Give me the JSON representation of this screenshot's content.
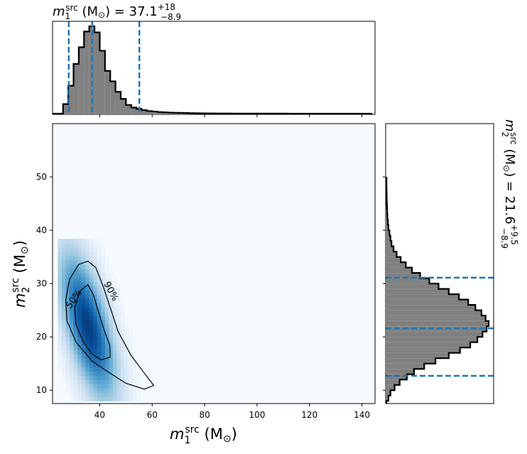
{
  "chart_data": [
    {
      "type": "histogram",
      "panel": "top-marginal",
      "variable": "m1_src",
      "title": {
        "main": "m",
        "sub": "1",
        "sup": "src",
        "rest": " (M",
        "sun": "⊙",
        "close": ") = 37.1",
        "plus": "+18",
        "minus": "−8.9"
      },
      "xlim": [
        22,
        145
      ],
      "median": 37.1,
      "lower": 28.2,
      "upper": 55.1,
      "bin_width": 2,
      "bin_start": 22,
      "values": [
        0,
        0,
        0.11,
        0.32,
        0.57,
        0.76,
        0.94,
        1.0,
        0.93,
        0.72,
        0.49,
        0.37,
        0.25,
        0.17,
        0.1,
        0.07,
        0.055,
        0.04,
        0.03,
        0.025,
        0.019,
        0.015,
        0.012,
        0.01,
        0.009,
        0.008,
        0.006,
        0.005,
        0.004,
        0.003,
        0.003,
        0.002,
        0.002,
        0.002,
        0.001,
        0.001,
        0.001,
        0.001,
        0.001,
        0.001,
        0.001,
        0.001,
        0.001,
        0.0008,
        0.0008,
        0.0006,
        0.0006,
        0.0005,
        0.0005,
        0.0004,
        0.0004,
        0.0003,
        0.0003,
        0.0002,
        0.0002,
        0.0001,
        0.0001,
        0.0001,
        0.0001,
        0.0001,
        0.0001
      ],
      "median_line_color": "#1f77b4",
      "fill_color": "#808080"
    },
    {
      "type": "heatmap",
      "panel": "joint",
      "x_variable": "m1_src",
      "y_variable": "m2_src",
      "xlim": [
        22,
        145
      ],
      "ylim": [
        7.5,
        60
      ],
      "xticks": [
        40,
        60,
        80,
        100,
        120,
        140
      ],
      "yticks": [
        10,
        20,
        30,
        40,
        50
      ],
      "xlabel": {
        "main": "m",
        "sub": "1",
        "sup": "src",
        "rest": " (M",
        "sun": "⊙",
        "close": ")"
      },
      "ylabel": {
        "main": "m",
        "sub": "2",
        "sup": "src",
        "rest": " (M",
        "sun": "⊙",
        "close": ")"
      },
      "density_peak": {
        "x": 35.5,
        "y": 22
      },
      "contours": [
        {
          "label": "50%",
          "level": 0.5
        },
        {
          "label": "90%",
          "level": 0.9
        }
      ],
      "colormap": "Blues"
    },
    {
      "type": "histogram",
      "panel": "right-marginal",
      "orientation": "horizontal",
      "variable": "m2_src",
      "title": {
        "main": "m",
        "sub": "2",
        "sup": "src",
        "rest": " (M",
        "sun": "⊙",
        "close": ") = 21.6",
        "plus": "+9.5",
        "minus": "−8.9"
      },
      "ylim": [
        7.5,
        60
      ],
      "median": 21.6,
      "lower": 12.7,
      "upper": 31.1,
      "bin_width": 1,
      "bin_start": 7,
      "values": [
        0,
        0.02,
        0.04,
        0.08,
        0.13,
        0.2,
        0.27,
        0.37,
        0.48,
        0.61,
        0.72,
        0.82,
        0.89,
        0.94,
        0.98,
        1.0,
        0.97,
        0.93,
        0.87,
        0.8,
        0.71,
        0.61,
        0.51,
        0.42,
        0.33,
        0.25,
        0.19,
        0.14,
        0.1,
        0.07,
        0.05,
        0.04,
        0.03,
        0.02,
        0.015,
        0.01,
        0.008,
        0.006,
        0.004,
        0.003,
        0.002,
        0.001,
        0.001
      ],
      "median_line_color": "#1f77b4",
      "fill_color": "#808080"
    }
  ]
}
